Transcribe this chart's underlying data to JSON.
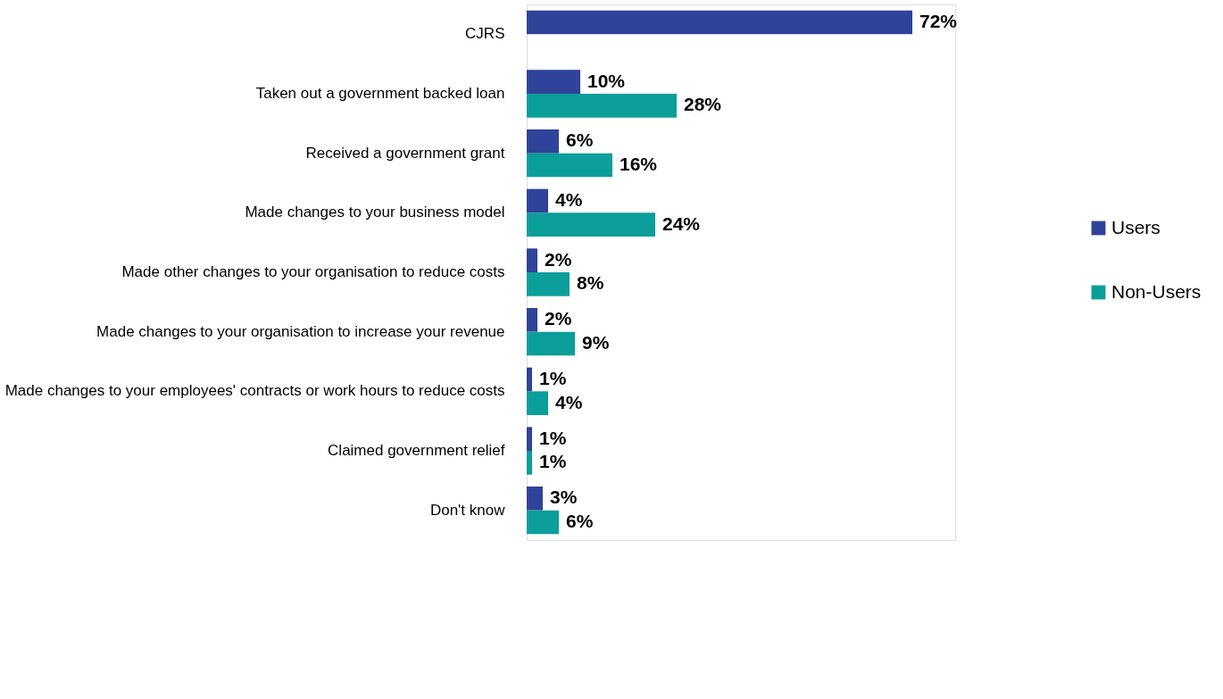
{
  "chart_data": {
    "type": "bar",
    "orientation": "horizontal",
    "categories": [
      "CJRS",
      "Taken out a government backed loan",
      "Received a government grant",
      "Made changes to your business model",
      "Made other changes to your organisation to reduce costs",
      "Made changes to your organisation to increase your revenue",
      "Made changes to your employees' contracts or work hours to reduce costs",
      "Claimed government relief",
      "Don't know"
    ],
    "series": [
      {
        "name": "Users",
        "color": "#2e4399",
        "values": [
          72,
          10,
          6,
          4,
          2,
          2,
          1,
          1,
          3
        ],
        "value_labels": [
          "72%",
          "10%",
          "6%",
          "4%",
          "2%",
          "2%",
          "1%",
          "1%",
          "3%"
        ]
      },
      {
        "name": "Non-Users",
        "color": "#0b9e9a",
        "values": [
          null,
          28,
          16,
          24,
          8,
          9,
          4,
          1,
          6
        ],
        "value_labels": [
          null,
          "28%",
          "16%",
          "24%",
          "8%",
          "9%",
          "4%",
          "1%",
          "6%"
        ]
      }
    ],
    "xlim": [
      0,
      80
    ],
    "tick_labels": "y",
    "legend": "right",
    "grid": false
  }
}
